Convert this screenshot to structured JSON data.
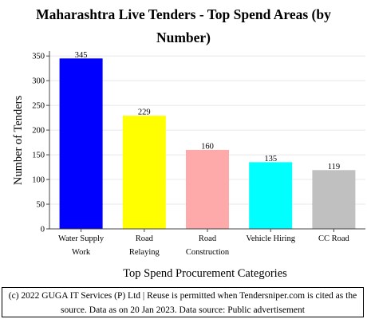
{
  "chart_data": {
    "type": "bar",
    "title_lines": [
      "Maharashtra Live Tenders - Top Spend Areas (by",
      "Number)"
    ],
    "xlabel": "Top Spend Procurement Categories",
    "ylabel": "Number of Tenders",
    "categories": [
      [
        "Water Supply",
        "Work"
      ],
      [
        "Road",
        "Relaying"
      ],
      [
        "Road",
        "Construction"
      ],
      [
        "Vehicle Hiring"
      ],
      [
        "CC Road"
      ]
    ],
    "values": [
      345,
      229,
      160,
      135,
      119
    ],
    "bar_colors": [
      "#0000ff",
      "#ffff00",
      "#ffaaaa",
      "#00ffff",
      "#c0c0c0"
    ],
    "ylim": [
      0,
      360
    ],
    "yticks": [
      0,
      50,
      100,
      150,
      200,
      250,
      300,
      350
    ],
    "grid": true,
    "legend": "none"
  },
  "footer": {
    "line1": "(c) 2022 GUGA IT Services (P) Ltd | Reuse is permitted when Tendersniper.com is cited as the",
    "line2": "source. Data as on 20 Jan 2023. Data source: Public advertisement"
  }
}
